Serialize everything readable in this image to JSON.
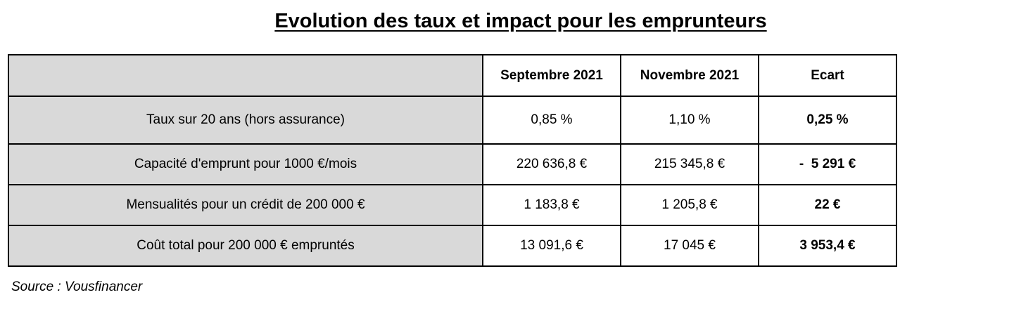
{
  "title": "Evolution des taux et impact pour les emprunteurs",
  "table": {
    "headers": [
      "",
      "Septembre 2021",
      "Novembre 2021",
      "Ecart"
    ],
    "rows": [
      {
        "label": "Taux sur 20 ans (hors assurance)",
        "sep": "0,85 %",
        "nov": "1,10 %",
        "ecart": "0,25 %"
      },
      {
        "label": "Capacité d'emprunt pour 1000 €/mois",
        "sep": "220 636,8 €",
        "nov": "215 345,8 €",
        "ecart": "-  5 291 €"
      },
      {
        "label": "Mensualités pour un crédit de 200 000 €",
        "sep": "1 183,8 €",
        "nov": "1 205,8 €",
        "ecart": "22 €"
      },
      {
        "label": "Coût total pour 200 000 € empruntés",
        "sep": "13 091,6 €",
        "nov": "17 045 €",
        "ecart": "3 953,4 €"
      }
    ]
  },
  "source": "Source : Vousfinancer"
}
